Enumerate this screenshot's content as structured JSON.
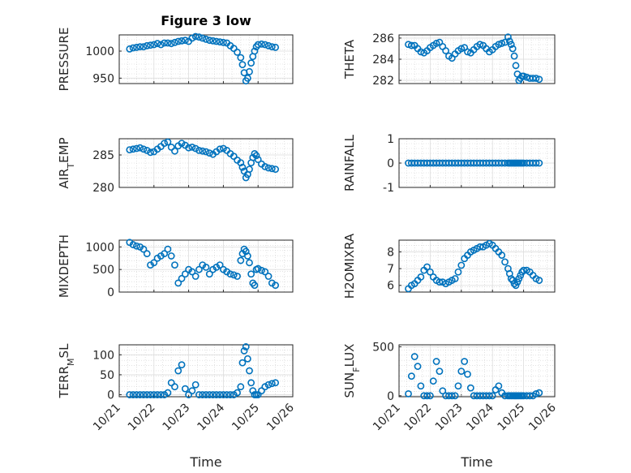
{
  "chart_data": [
    {
      "type": "scatter",
      "title": "Figure 3 low",
      "ylabel": "PRESSURE",
      "xlabel": "",
      "xlim": [
        "10/21",
        "10/26"
      ],
      "ylim": [
        940,
        1030
      ],
      "yticks": [
        "950",
        "1000"
      ],
      "xticks": [
        "10/21",
        "10/22",
        "10/23",
        "10/24",
        "10/25",
        "10/26"
      ],
      "show_xtick_labels": false,
      "series": [
        {
          "x": [
            0.3,
            0.4,
            0.5,
            0.6,
            0.7,
            0.8,
            0.9,
            1.0,
            1.1,
            1.2,
            1.3,
            1.4,
            1.5,
            1.6,
            1.7,
            1.8,
            1.9,
            2.0,
            2.1,
            2.2,
            2.3,
            2.4,
            2.5,
            2.6,
            2.7,
            2.8,
            2.9,
            3.0,
            3.1,
            3.2,
            3.3,
            3.4,
            3.5,
            3.55,
            3.6,
            3.65,
            3.7,
            3.75,
            3.8,
            3.85,
            3.9,
            3.95,
            4.0,
            4.1,
            4.2,
            4.3,
            4.4,
            4.5
          ],
          "y": [
            1004,
            1006,
            1007,
            1008,
            1008,
            1010,
            1011,
            1012,
            1014,
            1012,
            1015,
            1015,
            1014,
            1016,
            1018,
            1019,
            1020,
            1018,
            1024,
            1027,
            1026,
            1024,
            1022,
            1020,
            1019,
            1018,
            1017,
            1016,
            1015,
            1010,
            1005,
            998,
            988,
            975,
            960,
            945,
            950,
            962,
            978,
            990,
            1000,
            1008,
            1012,
            1013,
            1012,
            1010,
            1008,
            1007
          ]
        }
      ]
    },
    {
      "type": "scatter",
      "ylabel": "THETA",
      "xlabel": "",
      "xlim": [
        "10/21",
        "10/26"
      ],
      "ylim": [
        281.7,
        286.3
      ],
      "yticks": [
        "282",
        "284",
        "286"
      ],
      "xticks": [
        "10/21",
        "10/22",
        "10/23",
        "10/24",
        "10/25",
        "10/26"
      ],
      "show_xtick_labels": false,
      "series": [
        {
          "x": [
            0.3,
            0.4,
            0.5,
            0.6,
            0.7,
            0.8,
            0.9,
            1.0,
            1.1,
            1.2,
            1.3,
            1.4,
            1.5,
            1.6,
            1.7,
            1.8,
            1.9,
            2.0,
            2.1,
            2.2,
            2.3,
            2.4,
            2.5,
            2.6,
            2.7,
            2.8,
            2.9,
            3.0,
            3.1,
            3.2,
            3.3,
            3.4,
            3.5,
            3.55,
            3.6,
            3.65,
            3.7,
            3.75,
            3.8,
            3.85,
            3.9,
            3.95,
            4.0,
            4.1,
            4.2,
            4.3,
            4.4,
            4.5
          ],
          "y": [
            285.4,
            285.3,
            285.3,
            285.0,
            284.7,
            284.6,
            284.8,
            285.1,
            285.3,
            285.5,
            285.6,
            285.2,
            284.8,
            284.3,
            284.1,
            284.5,
            284.8,
            285.0,
            285.1,
            284.7,
            284.6,
            284.9,
            285.2,
            285.4,
            285.3,
            285.0,
            284.7,
            284.9,
            285.2,
            285.4,
            285.5,
            285.6,
            286.1,
            285.7,
            285.4,
            285.0,
            284.3,
            283.4,
            282.6,
            282.0,
            282.2,
            282.4,
            282.4,
            282.3,
            282.2,
            282.2,
            282.2,
            282.1
          ]
        }
      ]
    },
    {
      "type": "scatter",
      "ylabel": "AIR_TEMP",
      "xlabel": "",
      "xlim": [
        "10/21",
        "10/26"
      ],
      "ylim": [
        280,
        287.5
      ],
      "yticks": [
        "280",
        "285"
      ],
      "xticks": [
        "10/21",
        "10/22",
        "10/23",
        "10/24",
        "10/25",
        "10/26"
      ],
      "show_xtick_labels": false,
      "series": [
        {
          "x": [
            0.3,
            0.4,
            0.5,
            0.6,
            0.7,
            0.8,
            0.9,
            1.0,
            1.1,
            1.2,
            1.3,
            1.4,
            1.5,
            1.6,
            1.7,
            1.8,
            1.9,
            2.0,
            2.1,
            2.2,
            2.3,
            2.4,
            2.5,
            2.6,
            2.7,
            2.8,
            2.9,
            3.0,
            3.1,
            3.2,
            3.3,
            3.4,
            3.5,
            3.55,
            3.6,
            3.65,
            3.7,
            3.75,
            3.8,
            3.85,
            3.9,
            3.95,
            4.0,
            4.1,
            4.2,
            4.3,
            4.4,
            4.5
          ],
          "y": [
            285.8,
            285.9,
            286.0,
            286.1,
            285.9,
            285.7,
            285.4,
            285.5,
            285.9,
            286.3,
            286.8,
            287.0,
            286.2,
            285.6,
            286.4,
            286.8,
            286.5,
            286.1,
            286.2,
            286.0,
            285.7,
            285.6,
            285.5,
            285.3,
            285.1,
            285.5,
            285.9,
            286.0,
            285.7,
            285.2,
            284.8,
            284.2,
            283.8,
            283.1,
            282.5,
            281.5,
            282.0,
            282.8,
            283.8,
            284.6,
            285.2,
            284.9,
            284.3,
            283.6,
            283.2,
            283.0,
            282.9,
            282.8
          ]
        }
      ]
    },
    {
      "type": "scatter",
      "ylabel": "RAINFALL",
      "xlabel": "",
      "xlim": [
        "10/21",
        "10/26"
      ],
      "ylim": [
        -1,
        1
      ],
      "yticks": [
        "-1",
        "0",
        "1"
      ],
      "xticks": [
        "10/21",
        "10/22",
        "10/23",
        "10/24",
        "10/25",
        "10/26"
      ],
      "show_xtick_labels": false,
      "series": [
        {
          "x": [
            0.3,
            0.4,
            0.5,
            0.6,
            0.7,
            0.8,
            0.9,
            1.0,
            1.1,
            1.2,
            1.3,
            1.4,
            1.5,
            1.6,
            1.7,
            1.8,
            1.9,
            2.0,
            2.1,
            2.2,
            2.3,
            2.4,
            2.5,
            2.6,
            2.7,
            2.8,
            2.9,
            3.0,
            3.1,
            3.2,
            3.3,
            3.4,
            3.5,
            3.55,
            3.6,
            3.65,
            3.7,
            3.75,
            3.8,
            3.85,
            3.9,
            3.95,
            4.0,
            4.1,
            4.2,
            4.3,
            4.4,
            4.5
          ],
          "y": [
            0,
            0,
            0,
            0,
            0,
            0,
            0,
            0,
            0,
            0,
            0,
            0,
            0,
            0,
            0,
            0,
            0,
            0,
            0,
            0,
            0,
            0,
            0,
            0,
            0,
            0,
            0,
            0,
            0,
            0,
            0,
            0,
            0,
            0,
            0,
            0,
            0,
            0,
            0,
            0,
            0,
            0,
            0,
            0,
            0,
            0,
            0,
            0
          ]
        }
      ]
    },
    {
      "type": "scatter",
      "ylabel": "MIXDEPTH",
      "xlabel": "",
      "xlim": [
        "10/21",
        "10/26"
      ],
      "ylim": [
        0,
        1150
      ],
      "yticks": [
        "0",
        "500",
        "1000"
      ],
      "xticks": [
        "10/21",
        "10/22",
        "10/23",
        "10/24",
        "10/25",
        "10/26"
      ],
      "show_xtick_labels": false,
      "series": [
        {
          "x": [
            0.3,
            0.4,
            0.5,
            0.6,
            0.7,
            0.8,
            0.9,
            1.0,
            1.1,
            1.2,
            1.3,
            1.4,
            1.5,
            1.6,
            1.7,
            1.8,
            1.9,
            2.0,
            2.1,
            2.2,
            2.3,
            2.4,
            2.5,
            2.6,
            2.7,
            2.8,
            2.9,
            3.0,
            3.1,
            3.2,
            3.3,
            3.4,
            3.5,
            3.55,
            3.6,
            3.65,
            3.7,
            3.75,
            3.8,
            3.85,
            3.9,
            3.95,
            4.0,
            4.1,
            4.2,
            4.3,
            4.4,
            4.5
          ],
          "y": [
            1100,
            1050,
            1020,
            1000,
            950,
            850,
            600,
            650,
            750,
            800,
            850,
            950,
            800,
            600,
            200,
            300,
            400,
            500,
            450,
            350,
            500,
            600,
            550,
            400,
            500,
            550,
            600,
            500,
            450,
            400,
            380,
            350,
            700,
            850,
            950,
            900,
            800,
            650,
            400,
            200,
            150,
            500,
            520,
            480,
            450,
            350,
            200,
            150
          ]
        }
      ]
    },
    {
      "type": "scatter",
      "ylabel": "H2OMIXRA",
      "xlabel": "",
      "xlim": [
        "10/21",
        "10/26"
      ],
      "ylim": [
        5.6,
        8.7
      ],
      "yticks": [
        "6",
        "7",
        "8"
      ],
      "xticks": [
        "10/21",
        "10/22",
        "10/23",
        "10/24",
        "10/25",
        "10/26"
      ],
      "show_xtick_labels": false,
      "series": [
        {
          "x": [
            0.3,
            0.4,
            0.5,
            0.6,
            0.7,
            0.8,
            0.9,
            1.0,
            1.1,
            1.2,
            1.3,
            1.4,
            1.5,
            1.6,
            1.7,
            1.8,
            1.9,
            2.0,
            2.1,
            2.2,
            2.3,
            2.4,
            2.5,
            2.6,
            2.7,
            2.8,
            2.9,
            3.0,
            3.1,
            3.2,
            3.3,
            3.4,
            3.5,
            3.55,
            3.6,
            3.65,
            3.7,
            3.75,
            3.8,
            3.85,
            3.9,
            3.95,
            4.0,
            4.1,
            4.2,
            4.3,
            4.4,
            4.5
          ],
          "y": [
            5.8,
            6.0,
            6.1,
            6.3,
            6.5,
            6.9,
            7.1,
            6.8,
            6.5,
            6.3,
            6.2,
            6.2,
            6.1,
            6.2,
            6.3,
            6.4,
            6.8,
            7.2,
            7.6,
            7.8,
            8.0,
            8.1,
            8.2,
            8.3,
            8.3,
            8.4,
            8.5,
            8.4,
            8.2,
            8.0,
            7.8,
            7.4,
            7.0,
            6.7,
            6.4,
            6.3,
            6.1,
            6.0,
            6.2,
            6.4,
            6.6,
            6.8,
            6.9,
            6.9,
            6.8,
            6.6,
            6.4,
            6.3
          ]
        }
      ]
    },
    {
      "type": "scatter",
      "ylabel": "TERR_MSL",
      "xlabel": "Time",
      "xlim": [
        "10/21",
        "10/26"
      ],
      "ylim": [
        -5,
        125
      ],
      "yticks": [
        "0",
        "50",
        "100"
      ],
      "xticks": [
        "10/21",
        "10/22",
        "10/23",
        "10/24",
        "10/25",
        "10/26"
      ],
      "show_xtick_labels": true,
      "series": [
        {
          "x": [
            0.3,
            0.4,
            0.5,
            0.6,
            0.7,
            0.8,
            0.9,
            1.0,
            1.1,
            1.2,
            1.3,
            1.4,
            1.5,
            1.6,
            1.7,
            1.8,
            1.9,
            2.0,
            2.1,
            2.2,
            2.3,
            2.4,
            2.5,
            2.6,
            2.7,
            2.8,
            2.9,
            3.0,
            3.1,
            3.2,
            3.3,
            3.4,
            3.5,
            3.55,
            3.6,
            3.65,
            3.7,
            3.75,
            3.8,
            3.85,
            3.9,
            3.95,
            4.0,
            4.1,
            4.2,
            4.3,
            4.4,
            4.5
          ],
          "y": [
            0,
            0,
            0,
            0,
            0,
            0,
            0,
            0,
            0,
            0,
            0,
            5,
            30,
            20,
            60,
            75,
            15,
            0,
            10,
            25,
            0,
            0,
            0,
            0,
            0,
            0,
            0,
            0,
            0,
            0,
            0,
            5,
            20,
            80,
            110,
            120,
            90,
            60,
            30,
            10,
            0,
            0,
            0,
            10,
            20,
            25,
            28,
            30
          ]
        }
      ]
    },
    {
      "type": "scatter",
      "ylabel": "SUN_FLUX",
      "xlabel": "Time",
      "xlim": [
        "10/21",
        "10/26"
      ],
      "ylim": [
        -10,
        520
      ],
      "yticks": [
        "0",
        "500"
      ],
      "xticks": [
        "10/21",
        "10/22",
        "10/23",
        "10/24",
        "10/25",
        "10/26"
      ],
      "show_xtick_labels": true,
      "series": [
        {
          "x": [
            0.3,
            0.4,
            0.5,
            0.6,
            0.7,
            0.8,
            0.9,
            1.0,
            1.1,
            1.2,
            1.3,
            1.4,
            1.5,
            1.6,
            1.7,
            1.8,
            1.9,
            2.0,
            2.1,
            2.2,
            2.3,
            2.4,
            2.5,
            2.6,
            2.7,
            2.8,
            2.9,
            3.0,
            3.1,
            3.2,
            3.3,
            3.4,
            3.5,
            3.55,
            3.6,
            3.65,
            3.7,
            3.75,
            3.8,
            3.85,
            3.9,
            3.95,
            4.0,
            4.1,
            4.2,
            4.3,
            4.4,
            4.5
          ],
          "y": [
            20,
            200,
            400,
            300,
            100,
            0,
            0,
            0,
            150,
            350,
            250,
            50,
            0,
            0,
            0,
            0,
            100,
            250,
            350,
            220,
            80,
            0,
            0,
            0,
            0,
            0,
            0,
            0,
            60,
            100,
            30,
            0,
            0,
            0,
            0,
            0,
            0,
            0,
            0,
            0,
            0,
            0,
            0,
            0,
            0,
            0,
            20,
            30
          ]
        }
      ]
    }
  ]
}
